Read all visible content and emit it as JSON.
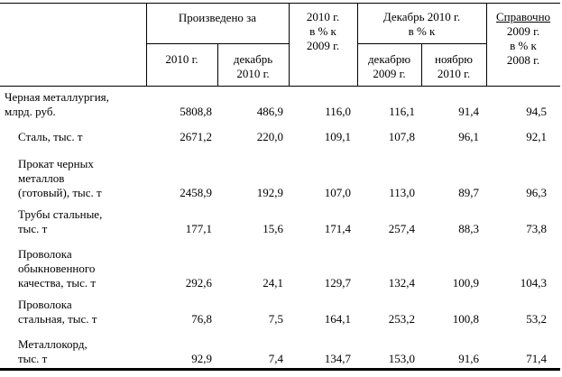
{
  "table": {
    "header": {
      "produced_group": "Произведено за",
      "produced_2010": "2010 г.",
      "produced_dec_l1": "декабрь",
      "produced_dec_l2": "2010 г.",
      "pct_2010_l1": "2010 г.",
      "pct_2010_l2": "в % к",
      "pct_2010_l3": "2009 г.",
      "dec_group_l1": "Декабрь 2010 г.",
      "dec_group_l2": "в % к",
      "dec_2009_l1": "декабрю",
      "dec_2009_l2": "2009 г.",
      "nov_2010_l1": "ноябрю",
      "nov_2010_l2": "2010 г.",
      "ref_l1": "Справочно",
      "ref_l2": "2009 г.",
      "ref_l3": "в % к",
      "ref_l4": "2008 г."
    },
    "rows": [
      {
        "label_lines": [
          "Черная металлургия,",
          "млрд. руб."
        ],
        "v2010": "5808,8",
        "vdec": "486,9",
        "p2010": "116,0",
        "pdec": "116,1",
        "pnov": "91,4",
        "pref": "94,5"
      },
      {
        "label_lines": [
          "Сталь, тыс. т"
        ],
        "v2010": "2671,2",
        "vdec": "220,0",
        "p2010": "109,1",
        "pdec": "107,8",
        "pnov": "96,1",
        "pref": "92,1"
      },
      {
        "label_lines": [
          "Прокат черных",
          "металлов",
          "(готовый), тыс. т"
        ],
        "v2010": "2458,9",
        "vdec": "192,9",
        "p2010": "107,0",
        "pdec": "113,0",
        "pnov": "89,7",
        "pref": "96,3"
      },
      {
        "label_lines": [
          "Трубы стальные,",
          "тыс. т"
        ],
        "v2010": "177,1",
        "vdec": "15,6",
        "p2010": "171,4",
        "pdec": "257,4",
        "pnov": "88,3",
        "pref": "73,8"
      },
      {
        "label_lines": [
          "Проволока",
          "обыкновенного",
          "качества, тыс. т"
        ],
        "v2010": "292,6",
        "vdec": "24,1",
        "p2010": "129,7",
        "pdec": "132,4",
        "pnov": "100,9",
        "pref": "104,3"
      },
      {
        "label_lines": [
          "Проволока",
          "стальная, тыс. т"
        ],
        "v2010": "76,8",
        "vdec": "7,5",
        "p2010": "164,1",
        "pdec": "253,2",
        "pnov": "100,8",
        "pref": "53,2"
      },
      {
        "label_lines": [
          "Металлокорд,",
          "тыс. т"
        ],
        "v2010": "92,9",
        "vdec": "7,4",
        "p2010": "134,7",
        "pdec": "153,0",
        "pnov": "91,6",
        "pref": "71,4"
      }
    ]
  }
}
